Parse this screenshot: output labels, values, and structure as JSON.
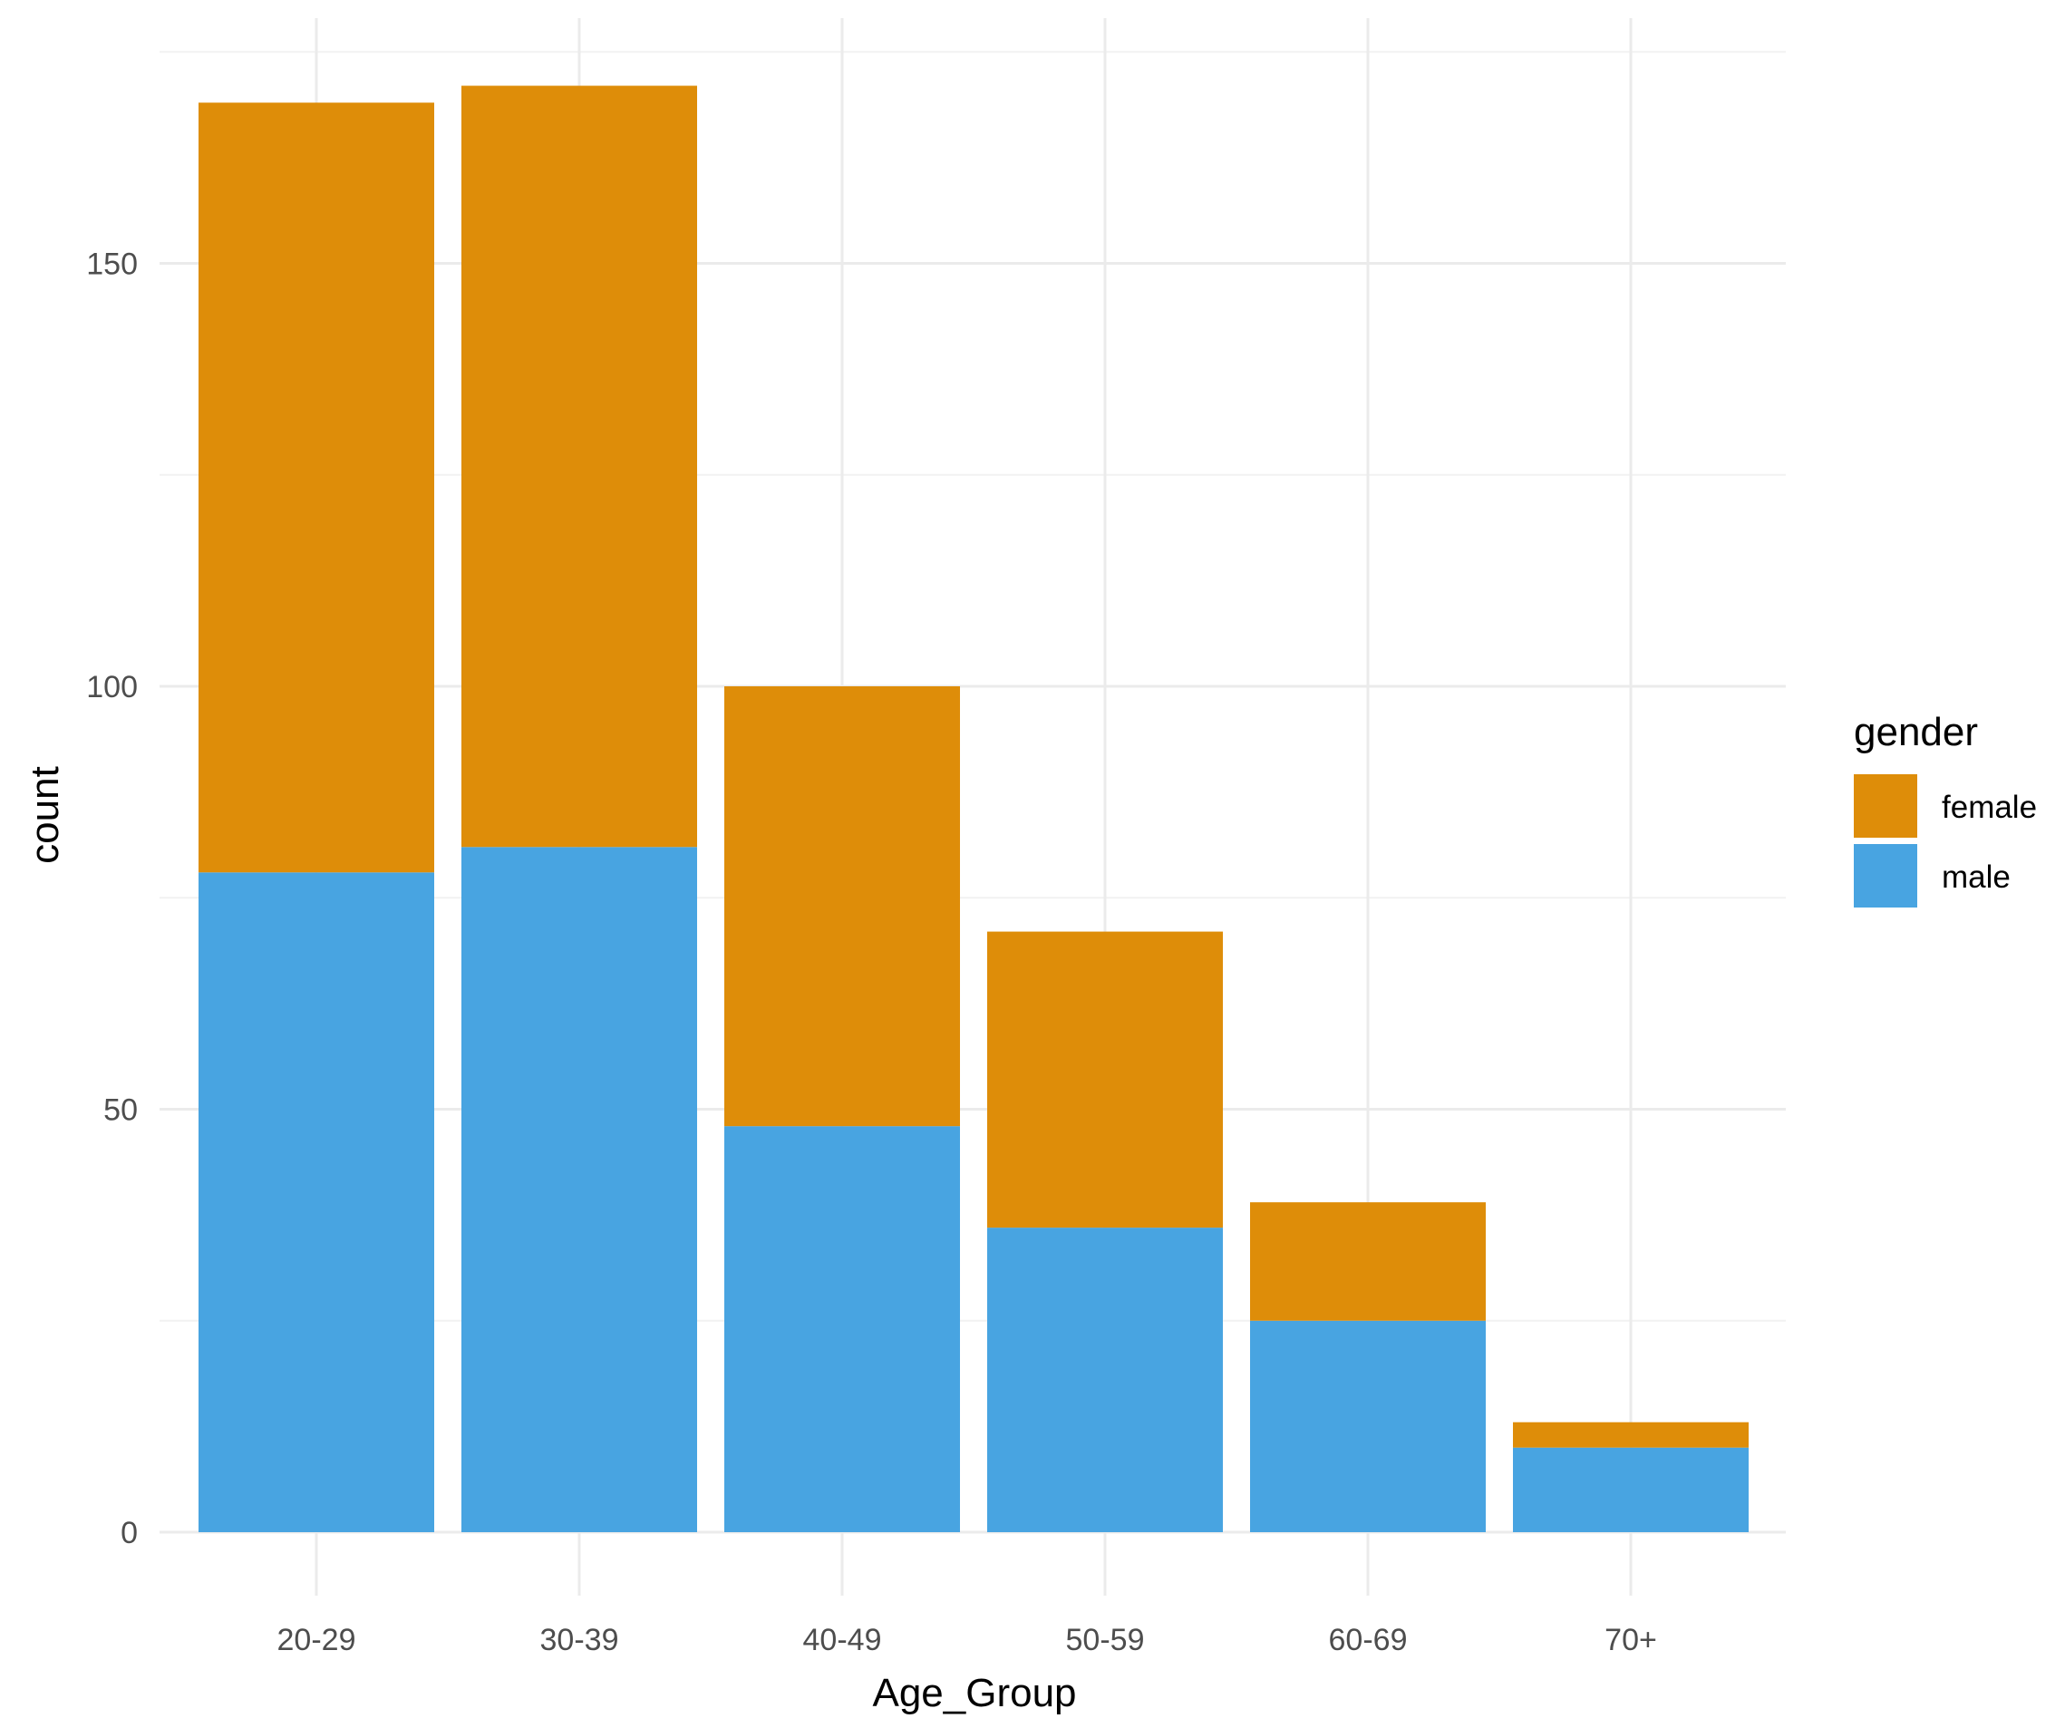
{
  "chart_data": {
    "type": "bar",
    "stacked": true,
    "categories": [
      "20-29",
      "30-39",
      "40-49",
      "50-59",
      "60-69",
      "70+"
    ],
    "series": [
      {
        "name": "male",
        "color": "#48a4e1",
        "values": [
          78,
          81,
          48,
          36,
          25,
          10
        ]
      },
      {
        "name": "female",
        "color": "#de8d09",
        "values": [
          91,
          90,
          52,
          35,
          14,
          3
        ]
      }
    ],
    "xlabel": "Age_Group",
    "ylabel": "count",
    "ylim": [
      0,
      175
    ],
    "yticks": [
      0,
      50,
      100,
      150
    ],
    "grid": true,
    "legend": {
      "title": "gender",
      "position": "right",
      "entries": [
        "female",
        "male"
      ]
    }
  }
}
